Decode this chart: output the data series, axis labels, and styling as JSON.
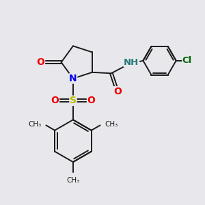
{
  "bg_color": "#e8e8ec",
  "bond_color": "#1a1a1a",
  "bond_width": 1.4,
  "atom_colors": {
    "N": "#0000ee",
    "O": "#ee0000",
    "S": "#bbbb00",
    "Cl": "#006600",
    "H": "#227777",
    "C": "#1a1a1a"
  },
  "font_size": 9.5,
  "figsize": [
    3.0,
    3.0
  ],
  "dpi": 100,
  "xlim": [
    0,
    10
  ],
  "ylim": [
    0,
    10
  ]
}
